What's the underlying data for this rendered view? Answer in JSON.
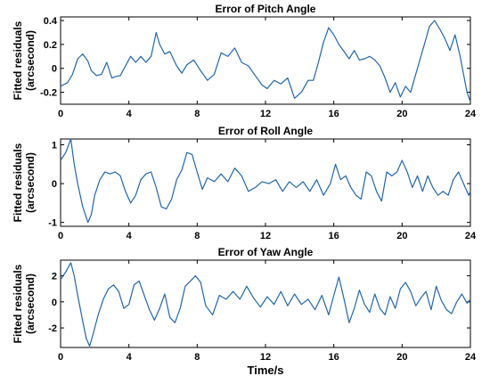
{
  "chart_data": [
    {
      "type": "line",
      "title": "Error of Pitch Angle",
      "ylabel": [
        "Fitted residuals",
        "(arcsecond)"
      ],
      "xlabel": "",
      "xlim": [
        0,
        24
      ],
      "ylim": [
        -0.3,
        0.43
      ],
      "xticks": [
        0,
        4,
        8,
        12,
        16,
        20,
        24
      ],
      "yticks": [
        -0.2,
        0,
        0.2,
        0.4
      ],
      "ytick_labels": [
        "-0.2",
        "0",
        "0.2",
        "0.4"
      ],
      "color": "#2166ac",
      "series": [
        {
          "x": [
            0,
            0.4,
            0.7,
            1.0,
            1.3,
            1.6,
            1.8,
            2.1,
            2.4,
            2.7,
            3.0,
            3.2,
            3.5,
            3.8,
            4.1,
            4.4,
            4.7,
            5.0,
            5.3,
            5.6,
            5.8,
            6.1,
            6.4,
            6.8,
            7.1,
            7.4,
            7.8,
            8.2,
            8.6,
            9.0,
            9.4,
            9.8,
            10.2,
            10.6,
            11.0,
            11.4,
            11.8,
            12.1,
            12.5,
            12.9,
            13.3,
            13.7,
            14.1,
            14.5,
            14.8,
            15.1,
            15.4,
            15.7,
            16.0,
            16.3,
            16.6,
            16.9,
            17.2,
            17.5,
            17.8,
            18.1,
            18.4,
            18.7,
            19.0,
            19.3,
            19.6,
            19.9,
            20.2,
            20.5,
            20.7,
            21.0,
            21.3,
            21.6,
            21.9,
            22.2,
            22.5,
            22.8,
            23.1,
            23.4,
            23.6,
            23.8,
            24.0
          ],
          "y": [
            -0.15,
            -0.12,
            -0.05,
            0.08,
            0.12,
            0.06,
            -0.02,
            -0.06,
            -0.05,
            0.05,
            -0.08,
            -0.07,
            -0.06,
            0.02,
            0.1,
            0.05,
            0.1,
            0.05,
            0.1,
            0.3,
            0.2,
            0.12,
            0.14,
            0.02,
            -0.04,
            0.03,
            0.07,
            -0.02,
            -0.1,
            -0.05,
            0.13,
            0.1,
            0.17,
            0.05,
            0.02,
            -0.06,
            -0.14,
            -0.17,
            -0.1,
            -0.13,
            -0.08,
            -0.25,
            -0.2,
            -0.1,
            -0.1,
            0.05,
            0.22,
            0.34,
            0.28,
            0.2,
            0.14,
            0.08,
            0.15,
            0.07,
            0.08,
            0.1,
            0.07,
            0.02,
            -0.08,
            -0.2,
            -0.12,
            -0.24,
            -0.15,
            -0.2,
            -0.1,
            0.05,
            0.2,
            0.35,
            0.4,
            0.33,
            0.25,
            0.15,
            0.28,
            0.1,
            -0.05,
            -0.2,
            -0.28
          ]
        }
      ]
    },
    {
      "type": "line",
      "title": "Error of Roll Angle",
      "ylabel": [
        "Fitted residuals",
        "(arcsecond)"
      ],
      "xlabel": "",
      "xlim": [
        0,
        24
      ],
      "ylim": [
        -1.1,
        1.15
      ],
      "xticks": [
        0,
        4,
        8,
        12,
        16,
        20,
        24
      ],
      "yticks": [
        -1,
        0,
        1
      ],
      "ytick_labels": [
        "-1",
        "0",
        "1"
      ],
      "color": "#2166ac",
      "series": [
        {
          "x": [
            0,
            0.3,
            0.6,
            0.8,
            1.0,
            1.3,
            1.6,
            1.8,
            2.0,
            2.3,
            2.6,
            2.9,
            3.2,
            3.5,
            3.8,
            4.1,
            4.4,
            4.7,
            5.0,
            5.3,
            5.6,
            5.9,
            6.2,
            6.5,
            6.8,
            7.1,
            7.4,
            7.7,
            8.0,
            8.3,
            8.6,
            9.0,
            9.4,
            9.8,
            10.2,
            10.6,
            11.0,
            11.4,
            11.8,
            12.2,
            12.6,
            13.0,
            13.4,
            13.8,
            14.2,
            14.6,
            15.0,
            15.4,
            15.8,
            16.1,
            16.4,
            16.7,
            17.0,
            17.3,
            17.6,
            17.9,
            18.2,
            18.5,
            18.8,
            19.1,
            19.4,
            19.7,
            20.0,
            20.3,
            20.6,
            20.9,
            21.2,
            21.5,
            21.8,
            22.1,
            22.4,
            22.7,
            23.0,
            23.3,
            23.6,
            23.9,
            24.0
          ],
          "y": [
            0.6,
            0.8,
            1.15,
            0.5,
            0.0,
            -0.6,
            -1.0,
            -0.8,
            -0.3,
            0.1,
            0.3,
            0.25,
            0.3,
            0.2,
            -0.2,
            -0.5,
            -0.3,
            0.1,
            0.25,
            0.3,
            -0.1,
            -0.6,
            -0.65,
            -0.4,
            0.1,
            0.35,
            0.8,
            0.75,
            0.3,
            -0.15,
            0.15,
            0.05,
            0.25,
            0.05,
            0.4,
            0.2,
            -0.2,
            -0.1,
            0.05,
            0.0,
            0.1,
            -0.2,
            0.05,
            -0.1,
            0.05,
            -0.2,
            0.1,
            -0.3,
            0.0,
            0.5,
            0.1,
            0.2,
            -0.1,
            -0.3,
            -0.4,
            0.3,
            0.2,
            -0.2,
            -0.45,
            0.3,
            0.2,
            0.3,
            0.6,
            0.3,
            -0.1,
            0.2,
            -0.2,
            0.2,
            -0.1,
            -0.3,
            -0.2,
            -0.3,
            0.1,
            0.3,
            0.0,
            -0.3,
            -0.2
          ]
        }
      ]
    },
    {
      "type": "line",
      "title": "Error of Yaw Angle",
      "ylabel": [
        "Fitted residuals",
        "(arcsecond)"
      ],
      "xlabel": "Time/s",
      "xlim": [
        0,
        24
      ],
      "ylim": [
        -3.5,
        3.2
      ],
      "xticks": [
        0,
        4,
        8,
        12,
        16,
        20,
        24
      ],
      "yticks": [
        -2,
        0,
        2
      ],
      "ytick_labels": [
        "-2",
        "0",
        "2"
      ],
      "color": "#2166ac",
      "series": [
        {
          "x": [
            0,
            0.3,
            0.6,
            0.8,
            1.0,
            1.3,
            1.5,
            1.7,
            1.9,
            2.2,
            2.5,
            2.8,
            3.1,
            3.4,
            3.7,
            4.0,
            4.3,
            4.6,
            4.9,
            5.2,
            5.5,
            5.8,
            6.1,
            6.4,
            6.7,
            7.0,
            7.3,
            7.6,
            7.9,
            8.2,
            8.5,
            8.9,
            9.3,
            9.7,
            10.1,
            10.5,
            10.9,
            11.3,
            11.7,
            12.1,
            12.5,
            12.9,
            13.3,
            13.7,
            14.1,
            14.5,
            14.9,
            15.3,
            15.7,
            16.0,
            16.3,
            16.6,
            16.9,
            17.2,
            17.5,
            17.8,
            18.1,
            18.4,
            18.7,
            19.0,
            19.3,
            19.6,
            19.9,
            20.2,
            20.5,
            20.8,
            21.1,
            21.4,
            21.7,
            22.0,
            22.3,
            22.6,
            22.9,
            23.2,
            23.5,
            23.8,
            24.0
          ],
          "y": [
            1.7,
            2.3,
            3.0,
            2.0,
            0.5,
            -1.5,
            -2.8,
            -3.4,
            -2.5,
            -1.0,
            0.2,
            1.0,
            1.3,
            0.8,
            -0.5,
            -0.2,
            1.3,
            1.6,
            0.5,
            -0.6,
            -1.4,
            -0.5,
            0.6,
            -1.2,
            -1.6,
            -0.5,
            1.2,
            1.6,
            2.0,
            1.5,
            -0.3,
            -1.0,
            0.5,
            0.2,
            0.8,
            0.2,
            1.2,
            0.3,
            -0.4,
            0.4,
            -0.2,
            0.8,
            -0.3,
            0.6,
            -0.2,
            0.2,
            -0.6,
            0.5,
            -1.0,
            0.5,
            1.9,
            0.2,
            -1.6,
            -0.5,
            0.9,
            -0.2,
            -0.8,
            0.6,
            -0.5,
            -1.0,
            0.4,
            -0.5,
            1.0,
            1.5,
            0.8,
            -0.3,
            0.3,
            0.8,
            -0.6,
            1.2,
            0.1,
            -0.6,
            -0.9,
            0.0,
            0.6,
            -0.1,
            0.2
          ]
        }
      ]
    }
  ]
}
